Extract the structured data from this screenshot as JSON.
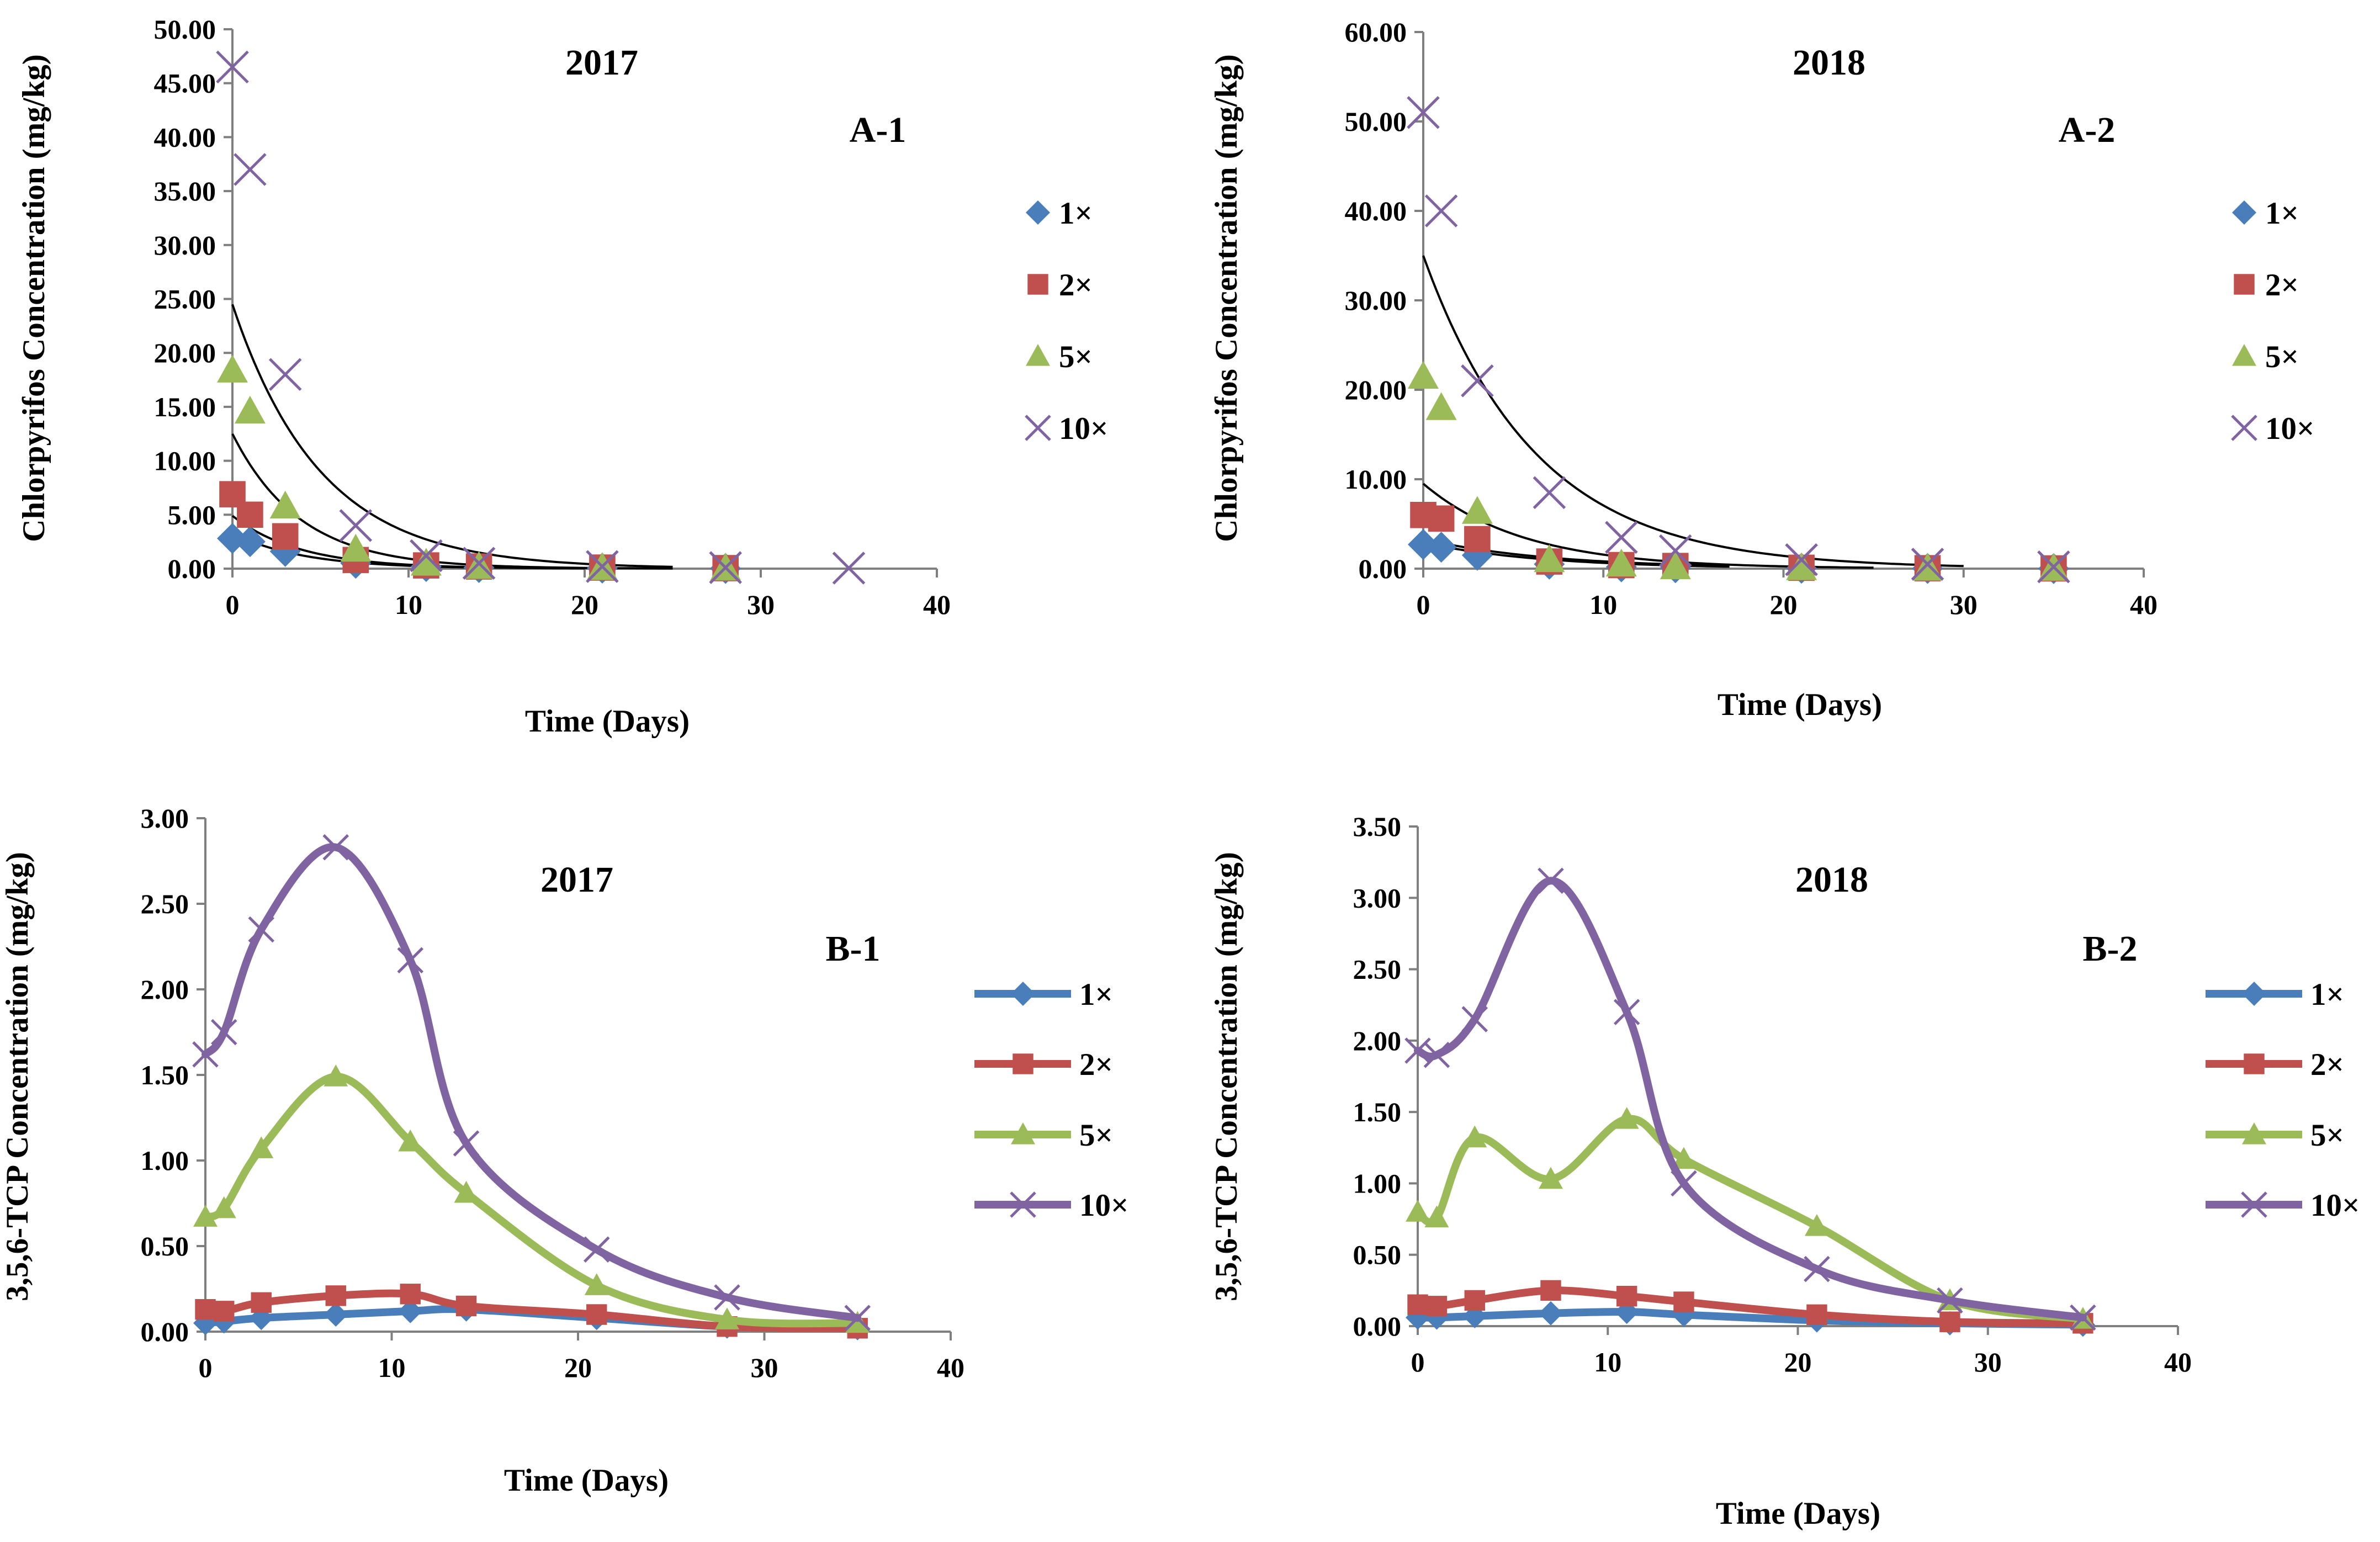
{
  "figure": {
    "colors": {
      "1x": "#4a7ebb",
      "2x": "#c0504d",
      "5x": "#9bbb59",
      "10x": "#8064a2",
      "fit": "#000000",
      "axis": "#7f7f7f"
    },
    "series_names": [
      "1×",
      "2×",
      "5×",
      "10×"
    ]
  },
  "chart_data": [
    {
      "id": "A-1",
      "type": "scatter",
      "title": "2017",
      "panel_label": "A-1",
      "xlabel": "Time (Days)",
      "ylabel": "Chlorpyrifos Concentration (mg/kg)",
      "xlim": [
        0,
        40
      ],
      "ylim": [
        0,
        50
      ],
      "xticks": [
        "0",
        "10",
        "20",
        "30",
        "40"
      ],
      "yticks": [
        "0.00",
        "5.00",
        "10.00",
        "15.00",
        "20.00",
        "25.00",
        "30.00",
        "35.00",
        "40.00",
        "45.00",
        "50.00"
      ],
      "legend_position": "right",
      "series": [
        {
          "name": "1×",
          "marker": "diamond",
          "x": [
            0,
            1,
            3,
            7,
            11,
            14,
            21,
            28
          ],
          "y": [
            2.8,
            2.5,
            1.6,
            0.5,
            0.2,
            0.1,
            0.05,
            0.02
          ]
        },
        {
          "name": "2×",
          "marker": "square",
          "x": [
            0,
            1,
            3,
            7,
            11,
            14,
            21,
            28
          ],
          "y": [
            6.9,
            5.0,
            3.0,
            0.8,
            0.3,
            0.2,
            0.1,
            0.05
          ]
        },
        {
          "name": "5×",
          "marker": "triangle",
          "x": [
            0,
            1,
            3,
            7,
            11,
            14,
            21,
            28
          ],
          "y": [
            18.4,
            14.6,
            5.8,
            1.8,
            0.5,
            0.2,
            0.1,
            0.05
          ]
        },
        {
          "name": "10×",
          "marker": "x",
          "x": [
            0,
            1,
            3,
            7,
            11,
            14,
            21,
            28,
            35
          ],
          "y": [
            46.5,
            37.0,
            18.0,
            4.0,
            1.2,
            0.5,
            0.2,
            0.1,
            0.05
          ]
        }
      ],
      "fits": [
        {
          "series": "1×",
          "a": 3.3,
          "k": 0.25,
          "xmax": 14
        },
        {
          "series": "2×",
          "a": 4.9,
          "k": 0.26,
          "xmax": 20
        },
        {
          "series": "5×",
          "a": 12.5,
          "k": 0.26,
          "xmax": 25
        },
        {
          "series": "10×",
          "a": 24.5,
          "k": 0.2,
          "xmax": 25
        }
      ]
    },
    {
      "id": "A-2",
      "type": "scatter",
      "title": "2018",
      "panel_label": "A-2",
      "xlabel": "Time (Days)",
      "ylabel": "Chlorpyrifos Concentration (mg/kg)",
      "xlim": [
        0,
        40
      ],
      "ylim": [
        0,
        60
      ],
      "xticks": [
        "0",
        "10",
        "20",
        "30",
        "40"
      ],
      "yticks": [
        "0.00",
        "10.00",
        "20.00",
        "30.00",
        "40.00",
        "50.00",
        "60.00"
      ],
      "legend_position": "right",
      "series": [
        {
          "name": "1×",
          "marker": "diamond",
          "x": [
            0,
            1,
            3,
            7,
            11,
            14,
            21,
            28,
            35
          ],
          "y": [
            2.7,
            2.4,
            1.5,
            0.5,
            0.2,
            0.1,
            0.05,
            0.02,
            0.01
          ]
        },
        {
          "name": "2×",
          "marker": "square",
          "x": [
            0,
            1,
            3,
            7,
            11,
            14,
            21,
            28,
            35
          ],
          "y": [
            6.0,
            5.6,
            3.3,
            0.8,
            0.4,
            0.3,
            0.1,
            0.05,
            0.03
          ]
        },
        {
          "name": "5×",
          "marker": "triangle",
          "x": [
            0,
            1,
            3,
            7,
            11,
            14,
            21,
            28,
            35
          ],
          "y": [
            21.5,
            18.0,
            6.4,
            1.0,
            0.5,
            0.2,
            0.1,
            0.05,
            0.03
          ]
        },
        {
          "name": "10×",
          "marker": "x",
          "x": [
            0,
            1,
            3,
            7,
            11,
            14,
            21,
            28,
            35
          ],
          "y": [
            51.0,
            40.0,
            21.0,
            8.5,
            3.5,
            2.0,
            1.0,
            0.5,
            0.2
          ]
        }
      ],
      "fits": [
        {
          "series": "1×",
          "a": 2.9,
          "k": 0.15,
          "xmax": 17
        },
        {
          "series": "2×",
          "a": 3.3,
          "k": 0.14,
          "xmax": 17
        },
        {
          "series": "5×",
          "a": 9.5,
          "k": 0.18,
          "xmax": 25
        },
        {
          "series": "10×",
          "a": 35.0,
          "k": 0.16,
          "xmax": 30
        }
      ]
    },
    {
      "id": "B-1",
      "type": "line",
      "title": "2017",
      "panel_label": "B-1",
      "xlabel": "Time (Days)",
      "ylabel": "3,5,6-TCP Concentration (mg/kg)",
      "xlim": [
        0,
        40
      ],
      "ylim": [
        0,
        3
      ],
      "xticks": [
        "0",
        "10",
        "20",
        "30",
        "40"
      ],
      "yticks": [
        "0.00",
        "0.50",
        "1.00",
        "1.50",
        "2.00",
        "2.50",
        "3.00"
      ],
      "legend_position": "right",
      "series": [
        {
          "name": "1×",
          "marker": "diamond",
          "x": [
            0,
            1,
            3,
            7,
            11,
            14,
            21,
            28,
            35
          ],
          "y": [
            0.05,
            0.06,
            0.08,
            0.1,
            0.12,
            0.13,
            0.08,
            0.03,
            0.02
          ]
        },
        {
          "name": "2×",
          "marker": "square",
          "x": [
            0,
            1,
            3,
            7,
            11,
            14,
            21,
            28,
            35
          ],
          "y": [
            0.13,
            0.12,
            0.17,
            0.21,
            0.22,
            0.15,
            0.1,
            0.03,
            0.02
          ]
        },
        {
          "name": "5×",
          "marker": "triangle",
          "x": [
            0,
            1,
            3,
            7,
            11,
            14,
            21,
            28,
            35
          ],
          "y": [
            0.67,
            0.72,
            1.07,
            1.49,
            1.11,
            0.81,
            0.27,
            0.07,
            0.05
          ]
        },
        {
          "name": "10×",
          "marker": "x",
          "x": [
            0,
            1,
            3,
            7,
            11,
            14,
            21,
            28,
            35
          ],
          "y": [
            1.62,
            1.75,
            2.35,
            2.83,
            2.17,
            1.1,
            0.48,
            0.2,
            0.08
          ]
        }
      ]
    },
    {
      "id": "B-2",
      "type": "line",
      "title": "2018",
      "panel_label": "B-2",
      "xlabel": "Time (Days)",
      "ylabel": "3,5,6-TCP Concentration (mg/kg)",
      "xlim": [
        0,
        40
      ],
      "ylim": [
        0,
        3.5
      ],
      "xticks": [
        "0",
        "10",
        "20",
        "30",
        "40"
      ],
      "yticks": [
        "0.00",
        "0.50",
        "1.00",
        "1.50",
        "2.00",
        "2.50",
        "3.00",
        "3.50"
      ],
      "legend_position": "right",
      "series": [
        {
          "name": "1×",
          "marker": "diamond",
          "x": [
            0,
            1,
            3,
            7,
            11,
            14,
            21,
            28,
            35
          ],
          "y": [
            0.06,
            0.06,
            0.07,
            0.09,
            0.1,
            0.08,
            0.04,
            0.02,
            0.01
          ]
        },
        {
          "name": "2×",
          "marker": "square",
          "x": [
            0,
            1,
            3,
            7,
            11,
            14,
            21,
            28,
            35
          ],
          "y": [
            0.15,
            0.14,
            0.18,
            0.25,
            0.21,
            0.17,
            0.08,
            0.03,
            0.02
          ]
        },
        {
          "name": "5×",
          "marker": "triangle",
          "x": [
            0,
            1,
            3,
            7,
            11,
            14,
            21,
            28,
            35
          ],
          "y": [
            0.8,
            0.76,
            1.32,
            1.03,
            1.45,
            1.17,
            0.7,
            0.18,
            0.05
          ]
        },
        {
          "name": "10×",
          "marker": "x",
          "x": [
            0,
            1,
            3,
            7,
            11,
            14,
            21,
            28,
            35
          ],
          "y": [
            1.93,
            1.9,
            2.15,
            3.12,
            2.2,
            1.0,
            0.4,
            0.18,
            0.06
          ]
        }
      ]
    }
  ]
}
